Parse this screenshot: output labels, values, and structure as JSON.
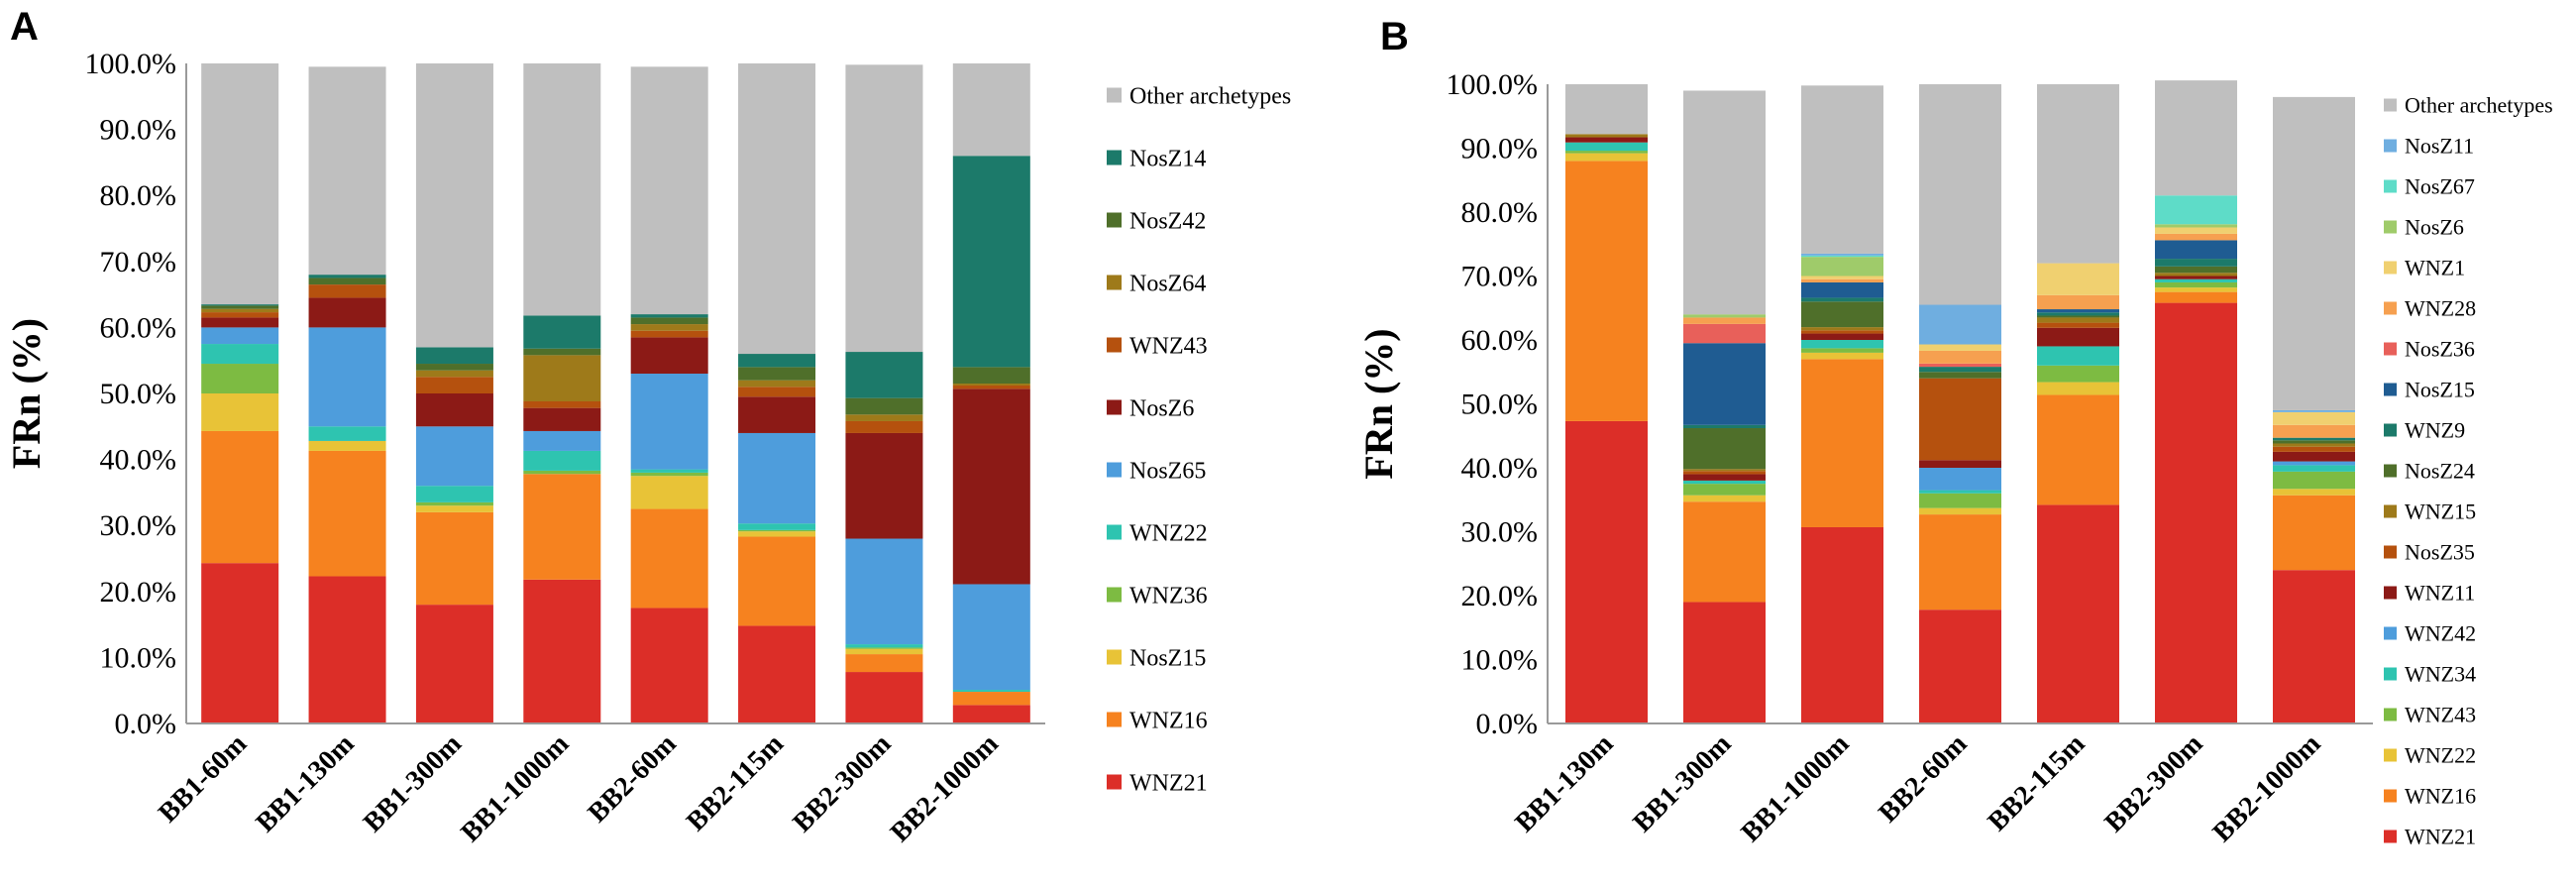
{
  "chart_data": [
    {
      "panel": "A",
      "type": "stacked-bar",
      "title": "",
      "ylabel": "FRn (%)",
      "xlabel": "",
      "ylim": [
        0,
        100
      ],
      "yticks": [
        "0.0%",
        "10.0%",
        "20.0%",
        "30.0%",
        "40.0%",
        "50.0%",
        "60.0%",
        "70.0%",
        "80.0%",
        "90.0%",
        "100.0%"
      ],
      "grid": false,
      "legend_position": "right",
      "categories": [
        "BB1-60m",
        "BB1-130m",
        "BB1-300m",
        "BB1-1000m",
        "BB2-60m",
        "BB2-115m",
        "BB2-300m",
        "BB2-1000m"
      ],
      "series": [
        {
          "name": "WNZ21",
          "color": "#DC2E28",
          "values": [
            24.3,
            22.3,
            18.0,
            21.8,
            17.5,
            14.8,
            7.8,
            2.8
          ]
        },
        {
          "name": "WNZ16",
          "color": "#F6821F",
          "values": [
            20.0,
            19.0,
            14.0,
            16.0,
            15.0,
            13.5,
            2.7,
            2.0
          ]
        },
        {
          "name": "NosZ15",
          "color": "#E8C337",
          "values": [
            5.7,
            1.5,
            1.0,
            0.0,
            5.0,
            0.8,
            0.8,
            0.0
          ]
        },
        {
          "name": "WNZ36",
          "color": "#7DBB42",
          "values": [
            4.5,
            0.0,
            0.5,
            0.5,
            0.5,
            0.2,
            0.2,
            0.0
          ]
        },
        {
          "name": "WNZ22",
          "color": "#2EC4B0",
          "values": [
            3.0,
            2.2,
            2.5,
            3.0,
            0.5,
            1.0,
            0.5,
            0.3
          ]
        },
        {
          "name": "NosZ65",
          "color": "#4E9DDC",
          "values": [
            2.5,
            15.0,
            9.0,
            3.0,
            14.5,
            13.7,
            16.0,
            16.0
          ]
        },
        {
          "name": "NosZ6",
          "color": "#8C1A16",
          "values": [
            1.5,
            4.5,
            5.0,
            3.5,
            5.5,
            5.5,
            16.0,
            29.6
          ]
        },
        {
          "name": "WNZ43",
          "color": "#B5510E",
          "values": [
            0.8,
            2.0,
            2.5,
            1.0,
            1.0,
            1.5,
            1.8,
            0.5
          ]
        },
        {
          "name": "NosZ64",
          "color": "#9E7A1A",
          "values": [
            0.5,
            0.0,
            1.0,
            7.0,
            1.0,
            1.0,
            1.0,
            0.3
          ]
        },
        {
          "name": "NosZ42",
          "color": "#4F6F2A",
          "values": [
            0.5,
            1.0,
            1.0,
            1.0,
            1.0,
            2.0,
            2.5,
            2.5
          ]
        },
        {
          "name": "NosZ14",
          "color": "#1C7A6A",
          "values": [
            0.2,
            0.5,
            2.5,
            5.0,
            0.5,
            2.0,
            7.0,
            32.0
          ]
        },
        {
          "name": "Other archetypes",
          "color": "#BFBFBF",
          "values": [
            36.5,
            31.5,
            43.0,
            38.2,
            37.5,
            44.0,
            43.5,
            14.0
          ]
        }
      ]
    },
    {
      "panel": "B",
      "type": "stacked-bar",
      "title": "",
      "ylabel": "FRn (%)",
      "xlabel": "",
      "ylim": [
        0,
        100
      ],
      "yticks": [
        "0.0%",
        "10.0%",
        "20.0%",
        "30.0%",
        "40.0%",
        "50.0%",
        "60.0%",
        "70.0%",
        "80.0%",
        "90.0%",
        "100.0%"
      ],
      "grid": false,
      "legend_position": "right",
      "categories": [
        "BB1-130m",
        "BB1-300m",
        "BB1-1000m",
        "BB2-60m",
        "BB2-115m",
        "BB2-300m",
        "BB2-1000m"
      ],
      "series": [
        {
          "name": "WNZ21",
          "color": "#DC2E28",
          "values": [
            47.3,
            19.0,
            30.7,
            17.8,
            34.2,
            65.8,
            24.0
          ]
        },
        {
          "name": "WNZ16",
          "color": "#F6821F",
          "values": [
            40.7,
            15.7,
            26.3,
            14.9,
            17.2,
            1.7,
            11.7
          ]
        },
        {
          "name": "WNZ22",
          "color": "#E8C337",
          "values": [
            1.2,
            1.0,
            1.0,
            1.0,
            2.0,
            0.7,
            1.0
          ]
        },
        {
          "name": "WNZ43",
          "color": "#7DBB42",
          "values": [
            0.4,
            1.8,
            0.7,
            2.3,
            2.6,
            0.8,
            2.7
          ]
        },
        {
          "name": "WNZ34",
          "color": "#2EC4B0",
          "values": [
            1.3,
            0.5,
            1.3,
            0.5,
            3.0,
            0.5,
            1.0
          ]
        },
        {
          "name": "WNZ42",
          "color": "#4E9DDC",
          "values": [
            0.0,
            0.0,
            0.0,
            3.5,
            0.0,
            0.0,
            0.6
          ]
        },
        {
          "name": "WNZ11",
          "color": "#8C1A16",
          "values": [
            0.8,
            1.0,
            1.0,
            1.2,
            2.9,
            0.5,
            1.5
          ]
        },
        {
          "name": "NosZ35",
          "color": "#B5510E",
          "values": [
            0.0,
            0.5,
            0.5,
            12.8,
            0.8,
            0.0,
            0.8
          ]
        },
        {
          "name": "WNZ15",
          "color": "#9E7A1A",
          "values": [
            0.5,
            0.3,
            0.5,
            0.0,
            0.8,
            0.5,
            0.5
          ]
        },
        {
          "name": "NosZ24",
          "color": "#4F6F2A",
          "values": [
            0.0,
            6.4,
            4.0,
            1.0,
            0.3,
            1.0,
            0.5
          ]
        },
        {
          "name": "WNZ9",
          "color": "#1C7A6A",
          "values": [
            0.0,
            0.5,
            0.6,
            0.8,
            0.5,
            1.2,
            0.4
          ]
        },
        {
          "name": "NosZ15",
          "color": "#1F5C92",
          "values": [
            0.0,
            12.8,
            2.4,
            0.0,
            0.5,
            2.9,
            0.0
          ]
        },
        {
          "name": "NosZ36",
          "color": "#E8605A",
          "values": [
            0.0,
            3.0,
            0.0,
            0.5,
            0.0,
            0.0,
            0.0
          ]
        },
        {
          "name": "WNZ28",
          "color": "#F6A050",
          "values": [
            0.0,
            1.0,
            0.5,
            2.0,
            2.2,
            1.0,
            2.0
          ]
        },
        {
          "name": "WNZ1",
          "color": "#F0D070",
          "values": [
            0.0,
            0.0,
            0.5,
            1.0,
            5.0,
            1.0,
            2.0
          ]
        },
        {
          "name": "NosZ6",
          "color": "#9FCB6A",
          "values": [
            0.0,
            0.5,
            3.0,
            0.0,
            0.0,
            0.5,
            0.0
          ]
        },
        {
          "name": "NosZ67",
          "color": "#5EDCC8",
          "values": [
            0.0,
            0.0,
            0.2,
            0.0,
            0.0,
            4.5,
            0.0
          ]
        },
        {
          "name": "NosZ11",
          "color": "#6FAEE0",
          "values": [
            0.0,
            0.0,
            0.3,
            6.2,
            0.0,
            0.0,
            0.3
          ]
        },
        {
          "name": "Other archetypes",
          "color": "#BFBFBF",
          "values": [
            7.8,
            35.0,
            26.3,
            34.5,
            28.0,
            18.0,
            49.0
          ]
        }
      ]
    }
  ]
}
